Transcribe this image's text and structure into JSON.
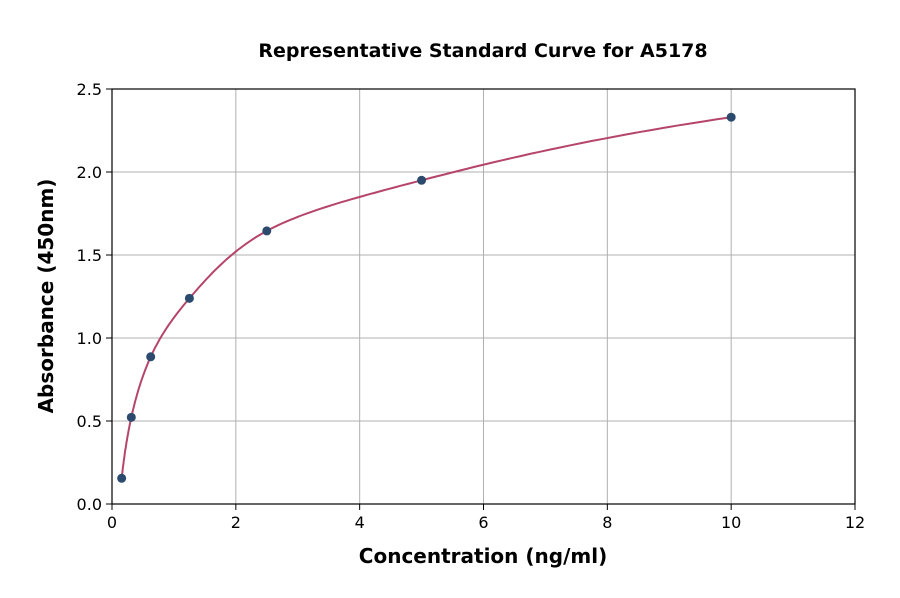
{
  "chart_data": {
    "type": "scatter",
    "title": "Representative Standard Curve for A5178",
    "xlabel": "Concentration (ng/ml)",
    "ylabel": "Absorbance (450nm)",
    "xlim": [
      0,
      12
    ],
    "ylim": [
      0,
      2.5
    ],
    "xticks": [
      0,
      2,
      4,
      6,
      8,
      10,
      12
    ],
    "yticks": [
      0.0,
      0.5,
      1.0,
      1.5,
      2.0,
      2.5
    ],
    "xtick_labels": [
      "0",
      "2",
      "4",
      "6",
      "8",
      "10",
      "12"
    ],
    "ytick_labels": [
      "0.0",
      "0.5",
      "1.0",
      "1.5",
      "2.0",
      "2.5"
    ],
    "grid": true,
    "series": [
      {
        "x": [
          0.156,
          0.312,
          0.625,
          1.25,
          2.5,
          5,
          10
        ],
        "y": [
          0.155,
          0.522,
          0.887,
          1.239,
          1.645,
          1.95,
          2.33
        ],
        "marker_color": "#2b4a6e",
        "line_color": "#b5456a",
        "fit_curve": true
      }
    ]
  }
}
